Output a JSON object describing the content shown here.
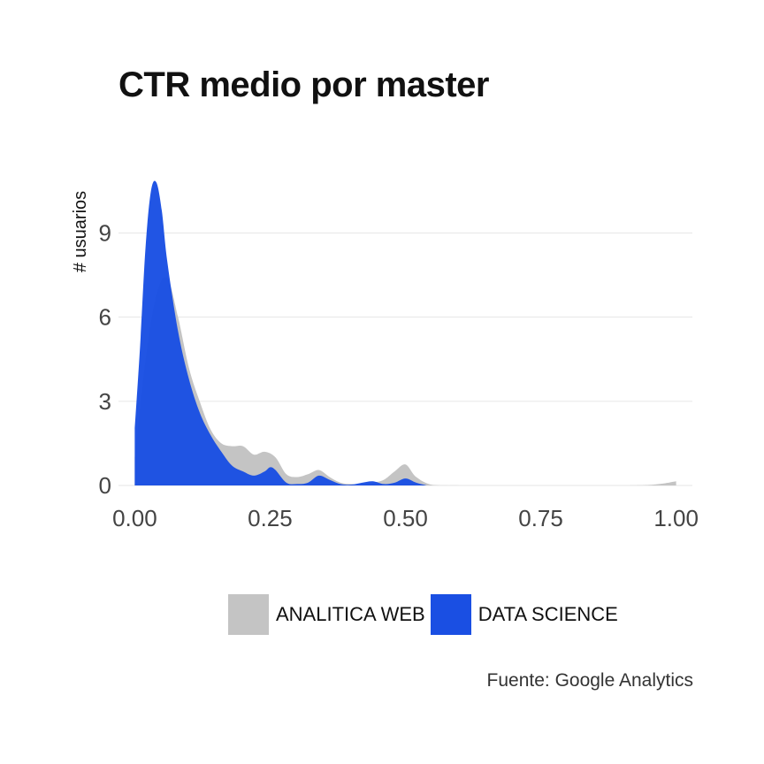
{
  "chart_data": {
    "type": "area",
    "title": "CTR medio por master",
    "xlabel": "",
    "ylabel": "# usuarios",
    "xlim": [
      -0.03,
      1.03
    ],
    "ylim": [
      0,
      11
    ],
    "xticks": [
      "0.00",
      "0.25",
      "0.50",
      "0.75",
      "1.00"
    ],
    "xtick_values": [
      0,
      0.25,
      0.5,
      0.75,
      1.0
    ],
    "yticks": [
      "0",
      "3",
      "6",
      "9"
    ],
    "ytick_values": [
      0,
      3,
      6,
      9
    ],
    "grid": true,
    "legend_position": "bottom",
    "series": [
      {
        "name": "ANALITICA WEB",
        "color": "#c4c4c4",
        "x": [
          0.0,
          0.02,
          0.04,
          0.06,
          0.08,
          0.1,
          0.12,
          0.14,
          0.16,
          0.18,
          0.2,
          0.22,
          0.24,
          0.26,
          0.28,
          0.3,
          0.32,
          0.34,
          0.36,
          0.38,
          0.4,
          0.42,
          0.44,
          0.46,
          0.48,
          0.5,
          0.52,
          0.55,
          0.6,
          0.7,
          0.8,
          0.9,
          0.95,
          0.98,
          1.0
        ],
        "values": [
          1.0,
          4.5,
          6.8,
          7.4,
          6.0,
          4.2,
          3.0,
          2.0,
          1.5,
          1.4,
          1.4,
          1.1,
          1.2,
          1.0,
          0.4,
          0.3,
          0.4,
          0.55,
          0.3,
          0.1,
          0.05,
          0.05,
          0.1,
          0.2,
          0.5,
          0.75,
          0.3,
          0.02,
          0.0,
          0.0,
          0.0,
          0.0,
          0.02,
          0.08,
          0.15
        ]
      },
      {
        "name": "DATA SCIENCE",
        "color": "#1a4fe3",
        "x": [
          0.0,
          0.01,
          0.02,
          0.03,
          0.04,
          0.05,
          0.06,
          0.08,
          0.1,
          0.12,
          0.14,
          0.16,
          0.18,
          0.2,
          0.22,
          0.24,
          0.25,
          0.26,
          0.28,
          0.3,
          0.32,
          0.34,
          0.36,
          0.38,
          0.4,
          0.42,
          0.44,
          0.46,
          0.48,
          0.5,
          0.52,
          0.54
        ],
        "values": [
          2.0,
          5.0,
          8.5,
          10.5,
          10.8,
          9.8,
          8.0,
          5.5,
          3.8,
          2.6,
          1.8,
          1.2,
          0.7,
          0.5,
          0.35,
          0.5,
          0.65,
          0.55,
          0.1,
          0.05,
          0.1,
          0.35,
          0.2,
          0.05,
          0.03,
          0.1,
          0.15,
          0.05,
          0.1,
          0.25,
          0.1,
          0.0
        ]
      }
    ]
  },
  "title": "CTR medio por master",
  "source": "Fuente: Google Analytics"
}
